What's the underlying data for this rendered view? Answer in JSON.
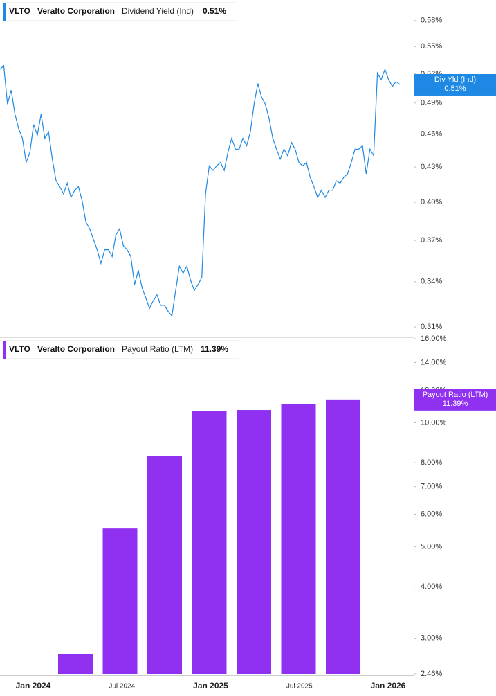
{
  "chart_data": [
    {
      "type": "line",
      "ticker": "VLTO",
      "company": "Veralto Corporation",
      "title": "Dividend Yield (Ind)",
      "value_label": "0.51%",
      "badge_label": "Div Yld (Ind)",
      "color": "#1e88e5",
      "log_scale": true,
      "ylim": [
        0.3035,
        0.605
      ],
      "yticks": [
        {
          "value": 0.31,
          "label": "0.31%"
        },
        {
          "value": 0.34,
          "label": "0.34%"
        },
        {
          "value": 0.37,
          "label": "0.37%"
        },
        {
          "value": 0.4,
          "label": "0.40%"
        },
        {
          "value": 0.43,
          "label": "0.43%"
        },
        {
          "value": 0.46,
          "label": "0.46%"
        },
        {
          "value": 0.49,
          "label": "0.49%"
        },
        {
          "value": 0.52,
          "label": "0.52%"
        },
        {
          "value": 0.55,
          "label": "0.55%"
        },
        {
          "value": 0.58,
          "label": "0.58%"
        }
      ],
      "values": [
        0.525,
        0.529,
        0.489,
        0.503,
        0.479,
        0.465,
        0.456,
        0.434,
        0.443,
        0.469,
        0.459,
        0.479,
        0.456,
        0.462,
        0.437,
        0.418,
        0.413,
        0.407,
        0.416,
        0.404,
        0.41,
        0.413,
        0.401,
        0.384,
        0.379,
        0.371,
        0.363,
        0.353,
        0.363,
        0.363,
        0.358,
        0.374,
        0.379,
        0.366,
        0.363,
        0.358,
        0.338,
        0.348,
        0.336,
        0.329,
        0.322,
        0.327,
        0.331,
        0.324,
        0.324,
        0.32,
        0.317,
        0.334,
        0.351,
        0.346,
        0.351,
        0.341,
        0.334,
        0.338,
        0.343,
        0.407,
        0.431,
        0.427,
        0.431,
        0.434,
        0.427,
        0.443,
        0.456,
        0.446,
        0.446,
        0.456,
        0.449,
        0.462,
        0.489,
        0.51,
        0.496,
        0.489,
        0.475,
        0.456,
        0.446,
        0.437,
        0.446,
        0.44,
        0.452,
        0.446,
        0.434,
        0.431,
        0.434,
        0.421,
        0.413,
        0.404,
        0.41,
        0.404,
        0.41,
        0.41,
        0.418,
        0.416,
        0.421,
        0.424,
        0.434,
        0.446,
        0.446,
        0.449,
        0.424,
        0.446,
        0.44,
        0.521,
        0.514,
        0.525,
        0.514,
        0.507,
        0.512,
        0.509
      ]
    },
    {
      "type": "bar",
      "ticker": "VLTO",
      "company": "Veralto Corporation",
      "title": "Payout Ratio (LTM)",
      "value_label": "11.39%",
      "badge_label": "Payout Ratio (LTM)",
      "color": "#9031f2",
      "log_scale": true,
      "ylim": [
        2.46,
        16
      ],
      "yticks": [
        {
          "value": 2.46,
          "label": "2.46%"
        },
        {
          "value": 3,
          "label": "3.00%"
        },
        {
          "value": 4,
          "label": "4.00%"
        },
        {
          "value": 5,
          "label": "5.00%"
        },
        {
          "value": 6,
          "label": "6.00%"
        },
        {
          "value": 7,
          "label": "7.00%"
        },
        {
          "value": 8,
          "label": "8.00%"
        },
        {
          "value": 10,
          "label": "10.00%"
        },
        {
          "value": 12,
          "label": "12.00%"
        },
        {
          "value": 14,
          "label": "14.00%"
        },
        {
          "value": 16,
          "label": "16.00%"
        }
      ],
      "categories": [
        null,
        null,
        null,
        null,
        null,
        null,
        null
      ],
      "values": [
        2.75,
        5.54,
        8.29,
        10.66,
        10.74,
        11.08,
        11.39
      ],
      "x_axis_labels": [
        "Jan 2024",
        "Jul 2024",
        "Jan 2025",
        "Jul 2025",
        "Jan 2026"
      ]
    }
  ]
}
